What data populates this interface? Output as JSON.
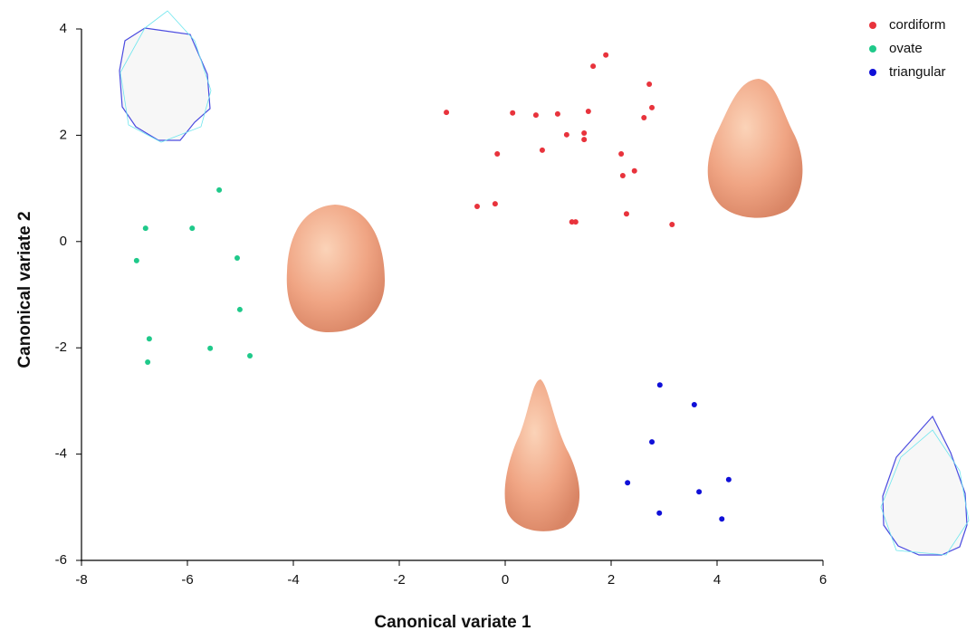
{
  "chart_data": {
    "type": "scatter",
    "xlabel": "Canonical variate 1",
    "ylabel": "Canonical variate 2",
    "xlim": [
      -8,
      6
    ],
    "ylim": [
      -6,
      4
    ],
    "xticks": [
      -8,
      -6,
      -4,
      -2,
      0,
      2,
      4,
      6
    ],
    "yticks": [
      -6,
      -4,
      -2,
      0,
      2,
      4
    ],
    "legend": "top-right",
    "series": [
      {
        "name": "cordiform",
        "color": "#e8333c",
        "x": [
          1.9,
          1.66,
          2.72,
          2.77,
          -1.11,
          0.14,
          0.58,
          0.99,
          1.57,
          2.62,
          1.16,
          1.49,
          1.49,
          0.7,
          -0.15,
          2.19,
          2.44,
          2.22,
          -0.19,
          -0.53,
          2.29,
          1.26,
          1.33,
          3.15
        ],
        "values": [
          3.51,
          3.3,
          2.96,
          2.52,
          2.43,
          2.42,
          2.38,
          2.4,
          2.45,
          2.33,
          2.01,
          2.04,
          1.92,
          1.72,
          1.65,
          1.65,
          1.33,
          1.24,
          0.71,
          0.66,
          0.52,
          0.37,
          0.37,
          0.32
        ]
      },
      {
        "name": "ovate",
        "color": "#1fc98a",
        "x": [
          -5.4,
          -6.79,
          -5.91,
          -6.96,
          -5.06,
          -5.01,
          -6.72,
          -5.57,
          -4.82,
          -6.75
        ],
        "values": [
          0.97,
          0.25,
          0.25,
          -0.36,
          -0.31,
          -1.28,
          -1.83,
          -2.01,
          -2.15,
          -2.27
        ]
      },
      {
        "name": "triangular",
        "color": "#1010d8",
        "x": [
          2.92,
          3.57,
          2.77,
          4.22,
          2.31,
          3.66,
          2.91,
          4.09
        ],
        "values": [
          -2.7,
          -3.07,
          -3.77,
          -4.48,
          -4.54,
          -4.71,
          -5.11,
          -5.22
        ]
      }
    ]
  }
}
